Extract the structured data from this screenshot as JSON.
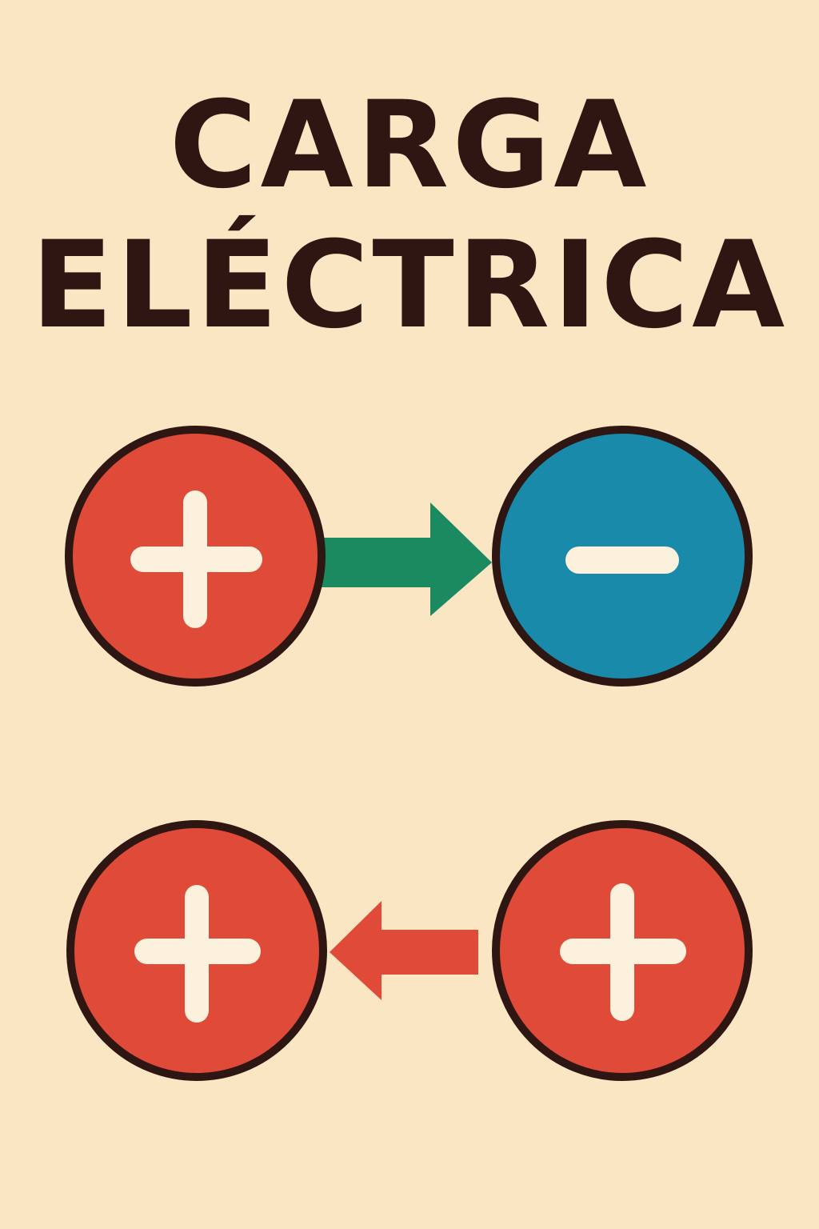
{
  "title": {
    "line1": "CARGA",
    "line2": "ELÉCTRICA"
  },
  "colors": {
    "background": "#fbe6c4",
    "outline": "#2e1712",
    "positive": "#e04a38",
    "negative": "#1a8aaa",
    "arrow_top": "#1c8a60",
    "arrow_bottom": "#e04a38",
    "symbol": "#fbf1dc"
  },
  "rows": [
    {
      "left_charge": "positive",
      "right_charge": "negative",
      "arrow_direction": "right",
      "arrow_color": "arrow_top"
    },
    {
      "left_charge": "positive",
      "right_charge": "positive",
      "arrow_direction": "left",
      "arrow_color": "arrow_bottom"
    }
  ],
  "icons": {
    "positive": "plus-icon",
    "negative": "minus-icon"
  }
}
